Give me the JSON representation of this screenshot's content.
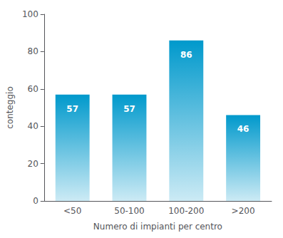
{
  "chart_data": {
    "type": "bar",
    "categories": [
      "<50",
      "50-100",
      "100-200",
      ">200"
    ],
    "values": [
      57,
      57,
      86,
      46
    ],
    "color": "#0099cc",
    "xlabel": "Numero di impianti per centro",
    "ylabel": "conteggio",
    "ylim": [
      0,
      100
    ],
    "yticks": [
      0,
      20,
      40,
      60,
      80,
      100
    ],
    "grid": false,
    "data_labels": true
  }
}
